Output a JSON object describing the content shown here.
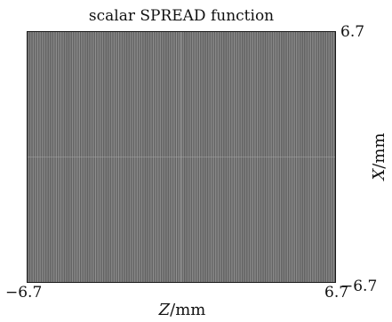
{
  "figure": {
    "title": "scalar SPREAD function",
    "x_axis": {
      "variable": "Z",
      "unit": "/mm",
      "tick_min": "−6.7",
      "tick_max": "6.7"
    },
    "y_axis": {
      "variable": "X",
      "unit": "/mm",
      "tick_min": "−6.7",
      "tick_max": "6.7"
    },
    "range_mm": [
      -6.7,
      6.7
    ],
    "pattern": "vertical-stripes",
    "colors": {
      "field_base": "#6c6c6c",
      "stripe_light": "#9a9a9a",
      "stripe_dark": "#585858",
      "frame": "#1a1a1a"
    }
  }
}
